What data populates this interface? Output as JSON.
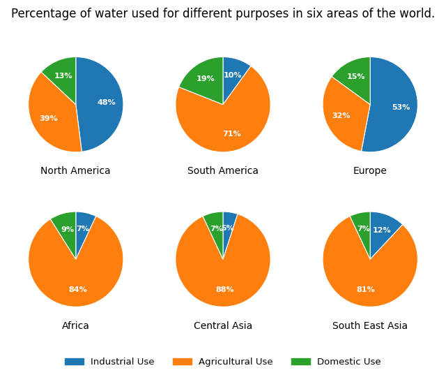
{
  "title": "Percentage of water used for different purposes in six areas of the world.",
  "legend": "bottom",
  "chart_data": [
    {
      "type": "pie",
      "title": "North America",
      "categories": [
        "Industrial Use",
        "Agricultural Use",
        "Domestic Use"
      ],
      "values": [
        48,
        39,
        13
      ],
      "value_labels": [
        "48%",
        "39%",
        "13%"
      ],
      "data_labels": true
    },
    {
      "type": "pie",
      "title": "South America",
      "categories": [
        "Industrial Use",
        "Agricultural Use",
        "Domestic Use"
      ],
      "values": [
        10,
        71,
        19
      ],
      "value_labels": [
        "10%",
        "71%",
        "19%"
      ],
      "data_labels": true
    },
    {
      "type": "pie",
      "title": "Europe",
      "categories": [
        "Industrial Use",
        "Agricultural Use",
        "Domestic Use"
      ],
      "values": [
        53,
        32,
        15
      ],
      "value_labels": [
        "53%",
        "32%",
        "15%"
      ],
      "data_labels": true
    },
    {
      "type": "pie",
      "title": "Africa",
      "categories": [
        "Industrial Use",
        "Agricultural Use",
        "Domestic Use"
      ],
      "values": [
        7,
        84,
        9
      ],
      "value_labels": [
        "7%",
        "84%",
        "9%"
      ],
      "data_labels": true
    },
    {
      "type": "pie",
      "title": "Central Asia",
      "categories": [
        "Industrial Use",
        "Agricultural Use",
        "Domestic Use"
      ],
      "values": [
        5,
        88,
        7
      ],
      "value_labels": [
        "5%",
        "88%",
        "7%"
      ],
      "data_labels": true
    },
    {
      "type": "pie",
      "title": "South East Asia",
      "categories": [
        "Industrial Use",
        "Agricultural Use",
        "Domestic Use"
      ],
      "values": [
        12,
        81,
        7
      ],
      "value_labels": [
        "12%",
        "81%",
        "7%"
      ],
      "data_labels": true
    }
  ]
}
